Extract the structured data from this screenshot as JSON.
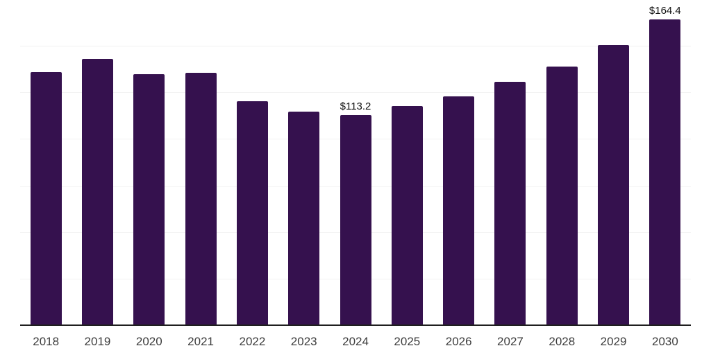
{
  "chart_data": {
    "type": "bar",
    "title": "",
    "xlabel": "",
    "ylabel": "",
    "categories": [
      "2018",
      "2019",
      "2020",
      "2021",
      "2022",
      "2023",
      "2024",
      "2025",
      "2026",
      "2027",
      "2028",
      "2029",
      "2030"
    ],
    "values": [
      136.4,
      143.4,
      135.2,
      136.0,
      120.7,
      115.1,
      113.2,
      118.0,
      123.3,
      131.1,
      139.3,
      150.9,
      164.4
    ],
    "data_labels": [
      {
        "category_index": 6,
        "text": "$113.2"
      },
      {
        "category_index": 12,
        "text": "$164.4"
      }
    ],
    "ylim": [
      0,
      175
    ],
    "gridline_step": 25,
    "grid": true,
    "legend": false,
    "y_tick_labels_visible": false,
    "colors": {
      "bar": "#35114e",
      "gridline": "#f2f2f2",
      "axis_line": "#1f1f1f",
      "tick_label": "#3d3d3d",
      "data_label": "#121212",
      "background": "#ffffff"
    }
  }
}
